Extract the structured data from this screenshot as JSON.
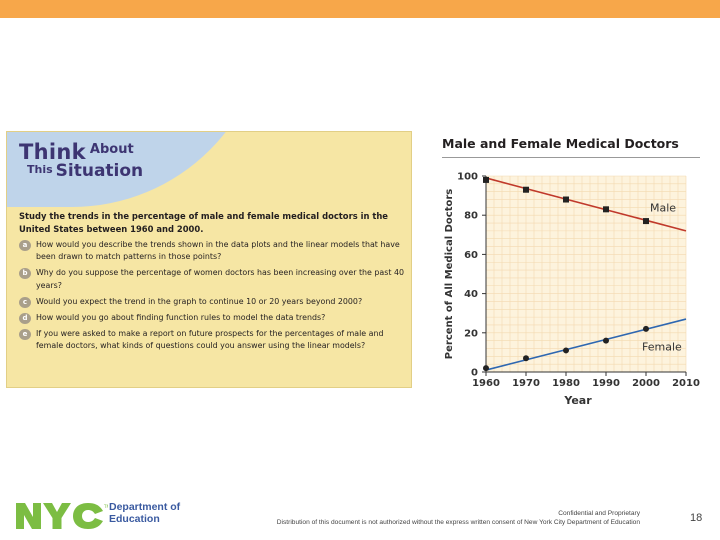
{
  "think": {
    "title_think": "Think",
    "title_about": "About",
    "title_this": "This",
    "title_situation": "Situation",
    "intro": "Study the trends in the percentage of male and female medical doctors in the United States between 1960 and 2000.",
    "questions": [
      {
        "letter": "a",
        "text": "How would you describe the trends shown in the data plots and the linear models that have been drawn to match patterns in those points?"
      },
      {
        "letter": "b",
        "text": "Why do you suppose the percentage of women doctors has been increasing over the past 40 years?"
      },
      {
        "letter": "c",
        "text": "Would you expect the trend in the graph to continue 10 or 20 years beyond 2000?"
      },
      {
        "letter": "d",
        "text": "How would you go about finding function rules to model the data trends?"
      },
      {
        "letter": "e",
        "text": "If you were asked to make a report on future prospects for the percentages of male and female doctors, what kinds of questions could you answer using the linear models?"
      }
    ]
  },
  "chart_data": {
    "type": "scatter",
    "title": "Male and Female Medical Doctors",
    "xlabel": "Year",
    "ylabel": "Percent of All Medical Doctors",
    "xlim": [
      1960,
      2010
    ],
    "ylim": [
      0,
      100
    ],
    "x_ticks": [
      1960,
      1970,
      1980,
      1990,
      2000,
      2010
    ],
    "y_ticks": [
      0,
      20,
      40,
      60,
      80,
      100
    ],
    "series": [
      {
        "name": "Male",
        "color": "#c0392b",
        "x": [
          1960,
          1970,
          1980,
          1990,
          2000
        ],
        "y": [
          98,
          93,
          88,
          83,
          77
        ],
        "fit": [
          [
            1960,
            99
          ],
          [
            2010,
            72
          ]
        ]
      },
      {
        "name": "Female",
        "color": "#2e67b1",
        "x": [
          1960,
          1970,
          1980,
          1990,
          2000
        ],
        "y": [
          2,
          7,
          11,
          16,
          22
        ],
        "fit": [
          [
            1960,
            1
          ],
          [
            2010,
            27
          ]
        ]
      }
    ]
  },
  "footer": {
    "department_line1": "Department of",
    "department_line2": "Education",
    "confidential": "Confidential and Proprietary",
    "distribution": "Distribution of this document is not authorized without the express written consent of New York City Department of Education",
    "page_number": "18"
  },
  "colors": {
    "accent_bar": "#f7a74a",
    "nyc_green": "#7cbd43",
    "nyc_blue": "#3a5aa0"
  }
}
